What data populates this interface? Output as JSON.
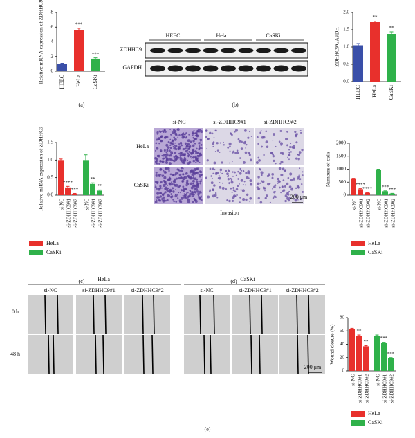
{
  "chart_data": [
    {
      "type": "bar",
      "ylabel": "Relative mRNA expression of ZDHHC9",
      "panel_label": "(a)",
      "categories": [
        "HEEC",
        "HeLa",
        "CaSKi"
      ],
      "values": [
        1.0,
        5.6,
        1.7
      ],
      "errors": [
        0.08,
        0.25,
        0.12
      ],
      "colors": [
        "#3a4fa8",
        "#e8302c",
        "#2fb14a"
      ],
      "significance": [
        null,
        "***",
        "***"
      ],
      "ylim": [
        0,
        8
      ],
      "yticks": [
        0,
        2,
        4,
        6,
        8
      ]
    },
    {
      "type": "bar",
      "ylabel": "ZDHHC9/GAPDH",
      "panel_label": "(b)",
      "categories": [
        "HEEC",
        "HeLa",
        "CaSKi"
      ],
      "values": [
        1.05,
        1.72,
        1.38
      ],
      "errors": [
        0.05,
        0.03,
        0.06
      ],
      "colors": [
        "#3a4fa8",
        "#e8302c",
        "#2fb14a"
      ],
      "significance": [
        null,
        "**",
        "**"
      ],
      "ylim": [
        0,
        2
      ],
      "yticks": [
        {
          "value": 0,
          "label": "0.0"
        },
        {
          "value": 0.5,
          "label": "0.5"
        },
        {
          "value": 1,
          "label": "1.0"
        },
        {
          "value": 1.5,
          "label": "1.5"
        },
        {
          "value": 2,
          "label": "2.0"
        }
      ]
    },
    {
      "type": "grouped_bar",
      "ylabel": "Relative mRNA expression of ZDHHC9",
      "panel_label": "(c)",
      "categories": [
        "si-NC",
        "si-ZDHHC9#1",
        "si-ZDHHC9#2"
      ],
      "series": [
        {
          "name": "HeLa",
          "color": "#e8302c",
          "values": [
            1.0,
            0.22,
            0.04
          ],
          "errors": [
            0.03,
            0.03,
            0.01
          ],
          "significance": [
            null,
            "****",
            "***"
          ]
        },
        {
          "name": "CaSKi",
          "color": "#2fb14a",
          "values": [
            1.0,
            0.32,
            0.13
          ],
          "errors": [
            0.15,
            0.03,
            0.02
          ],
          "significance": [
            null,
            "**",
            "**"
          ]
        }
      ],
      "ylim": [
        0,
        1.5
      ],
      "yticks": [
        {
          "value": 0,
          "label": "0.0"
        },
        {
          "value": 0.5,
          "label": "0.5"
        },
        {
          "value": 1,
          "label": "1.0"
        },
        {
          "value": 1.5,
          "label": "1.5"
        }
      ]
    },
    {
      "type": "grouped_bar",
      "ylabel": "Numbers of cells",
      "panel_label": "(d)",
      "categories": [
        "si-NC",
        "si-ZDHHC9#1",
        "si-ZDHHC9#2"
      ],
      "series": [
        {
          "name": "HeLa",
          "color": "#e8302c",
          "values": [
            620,
            230,
            90
          ],
          "errors": [
            30,
            20,
            10
          ],
          "significance": [
            null,
            "****",
            "****"
          ]
        },
        {
          "name": "CaSKi",
          "color": "#2fb14a",
          "values": [
            960,
            150,
            60
          ],
          "errors": [
            40,
            15,
            10
          ],
          "significance": [
            null,
            "***",
            "***"
          ]
        }
      ],
      "ylim": [
        0,
        2000
      ],
      "yticks": [
        0,
        500,
        1000,
        1500,
        2000
      ]
    },
    {
      "type": "grouped_bar",
      "ylabel": "Wound closure (%)",
      "panel_label": "(e)",
      "categories": [
        "si-NC",
        "si-ZDHHC9#1",
        "si-ZDHHC9#2"
      ],
      "series": [
        {
          "name": "HeLa",
          "color": "#e8302c",
          "values": [
            63,
            53,
            37
          ],
          "errors": [
            1,
            1,
            1
          ],
          "significance": [
            null,
            "**",
            "**"
          ]
        },
        {
          "name": "CaSKi",
          "color": "#2fb14a",
          "values": [
            53,
            42,
            19
          ],
          "errors": [
            1,
            1,
            1
          ],
          "significance": [
            null,
            "***",
            "***"
          ]
        }
      ],
      "ylim": [
        0,
        80
      ],
      "yticks": [
        0,
        20,
        40,
        60,
        80
      ]
    }
  ],
  "blot": {
    "lanes": [
      "HEEC",
      "Hela",
      "CaSKi"
    ],
    "bands": [
      "ZDHHC9",
      "GAPDH"
    ]
  },
  "invasion": {
    "columns": [
      "si-NC",
      "si-ZDHHC9#1",
      "si-ZDHHC9#2"
    ],
    "rows": [
      "HeLa",
      "CaSKi"
    ],
    "scale": "200 μm",
    "caption": "Invasion"
  },
  "wound": {
    "groups": [
      "HeLa",
      "CaSKi"
    ],
    "columns": [
      "si-NC",
      "si-ZDHHC9#1",
      "si-ZDHHC9#2"
    ],
    "rows": [
      "0 h",
      "48 h"
    ],
    "scale": "200 μm"
  }
}
